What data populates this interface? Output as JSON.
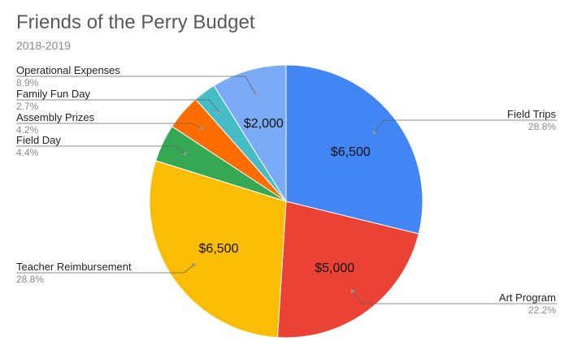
{
  "chart_data": {
    "type": "pie",
    "title": "Friends of the Perry Budget",
    "subtitle": "2018-2019",
    "slices": [
      {
        "name": "Field Trips",
        "value": 6500,
        "percent": "28.8%",
        "value_label": "$6,500",
        "color": "#4285f4"
      },
      {
        "name": "Art Program",
        "value": 5000,
        "percent": "22.2%",
        "value_label": "$5,000",
        "color": "#ea4335"
      },
      {
        "name": "Teacher Reimbursement",
        "value": 6500,
        "percent": "28.8%",
        "value_label": "$6,500",
        "color": "#fbbc04"
      },
      {
        "name": "Field Day",
        "value": 1000,
        "percent": "4.4%",
        "value_label": "",
        "color": "#34a853"
      },
      {
        "name": "Assembly Prizes",
        "value": 950,
        "percent": "4.2%",
        "value_label": "",
        "color": "#ff6d01"
      },
      {
        "name": "Family Fun Day",
        "value": 600,
        "percent": "2.7%",
        "value_label": "",
        "color": "#46bdc6"
      },
      {
        "name": "Operational Expenses",
        "value": 2000,
        "percent": "8.9%",
        "value_label": "$2,000",
        "color": "#7baaf7"
      }
    ]
  }
}
